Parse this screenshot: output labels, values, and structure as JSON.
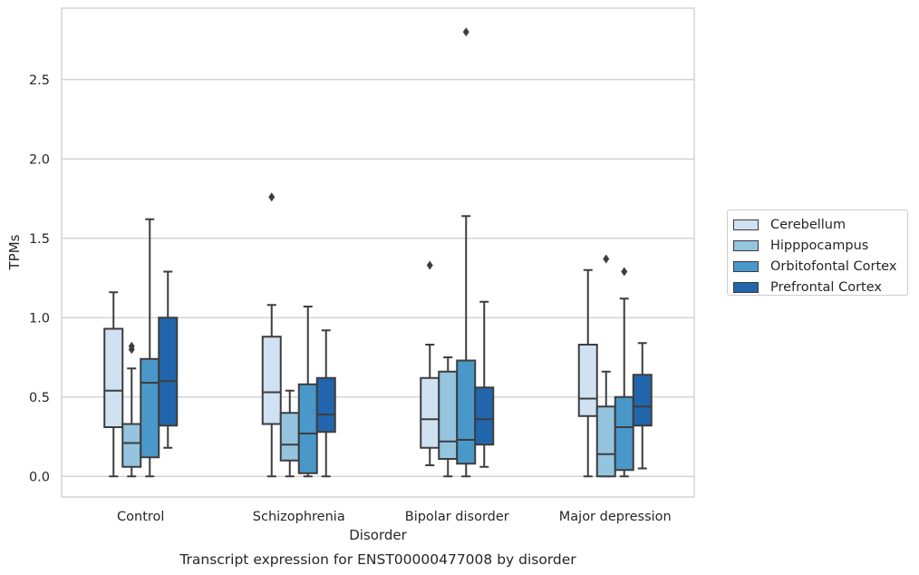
{
  "chart_data": {
    "type": "box",
    "caption": "Transcript expression for ENST00000477008 by disorder",
    "xlabel": "Disorder",
    "ylabel": "TPMs",
    "categories": [
      "Control",
      "Schizophrenia",
      "Bipolar disorder",
      "Major depression"
    ],
    "ylim": [
      -0.13,
      2.95
    ],
    "yticks": [
      0.0,
      0.5,
      1.0,
      1.5,
      2.0,
      2.5
    ],
    "ytick_labels": [
      "0.0",
      "0.5",
      "1.0",
      "1.5",
      "2.0",
      "2.5"
    ],
    "grid": "horizontal",
    "legend_placement": "right",
    "series": [
      {
        "name": "Cerebellum",
        "color": "#d0e1f2",
        "boxes": [
          {
            "whislo": 0.0,
            "q1": 0.31,
            "med": 0.54,
            "q3": 0.93,
            "whishi": 1.16,
            "fliers": []
          },
          {
            "whislo": 0.0,
            "q1": 0.33,
            "med": 0.53,
            "q3": 0.88,
            "whishi": 1.08,
            "fliers": [
              1.76
            ]
          },
          {
            "whislo": 0.07,
            "q1": 0.18,
            "med": 0.36,
            "q3": 0.62,
            "whishi": 0.83,
            "fliers": [
              1.33
            ]
          },
          {
            "whislo": 0.0,
            "q1": 0.38,
            "med": 0.49,
            "q3": 0.83,
            "whishi": 1.3,
            "fliers": []
          }
        ]
      },
      {
        "name": "Hipppocampus",
        "color": "#94c4df",
        "boxes": [
          {
            "whislo": 0.0,
            "q1": 0.06,
            "med": 0.21,
            "q3": 0.33,
            "whishi": 0.68,
            "fliers": [
              0.8,
              0.82
            ]
          },
          {
            "whislo": 0.0,
            "q1": 0.1,
            "med": 0.2,
            "q3": 0.4,
            "whishi": 0.54,
            "fliers": []
          },
          {
            "whislo": 0.0,
            "q1": 0.11,
            "med": 0.22,
            "q3": 0.66,
            "whishi": 0.75,
            "fliers": []
          },
          {
            "whislo": 0.0,
            "q1": 0.0,
            "med": 0.14,
            "q3": 0.44,
            "whishi": 0.66,
            "fliers": [
              1.37
            ]
          }
        ]
      },
      {
        "name": "Orbitofontal Cortex",
        "color": "#4a98c9",
        "boxes": [
          {
            "whislo": 0.0,
            "q1": 0.12,
            "med": 0.59,
            "q3": 0.74,
            "whishi": 1.62,
            "fliers": []
          },
          {
            "whislo": 0.0,
            "q1": 0.02,
            "med": 0.27,
            "q3": 0.58,
            "whishi": 1.07,
            "fliers": []
          },
          {
            "whislo": 0.0,
            "q1": 0.08,
            "med": 0.23,
            "q3": 0.73,
            "whishi": 1.64,
            "fliers": [
              2.8
            ]
          },
          {
            "whislo": 0.0,
            "q1": 0.04,
            "med": 0.31,
            "q3": 0.5,
            "whishi": 1.12,
            "fliers": [
              1.29
            ]
          }
        ]
      },
      {
        "name": "Prefrontal Cortex",
        "color": "#2166ac",
        "boxes": [
          {
            "whislo": 0.18,
            "q1": 0.32,
            "med": 0.6,
            "q3": 1.0,
            "whishi": 1.29,
            "fliers": []
          },
          {
            "whislo": 0.0,
            "q1": 0.28,
            "med": 0.39,
            "q3": 0.62,
            "whishi": 0.92,
            "fliers": []
          },
          {
            "whislo": 0.06,
            "q1": 0.2,
            "med": 0.36,
            "q3": 0.56,
            "whishi": 1.1,
            "fliers": []
          },
          {
            "whislo": 0.05,
            "q1": 0.32,
            "med": 0.44,
            "q3": 0.64,
            "whishi": 0.84,
            "fliers": []
          }
        ]
      }
    ]
  }
}
